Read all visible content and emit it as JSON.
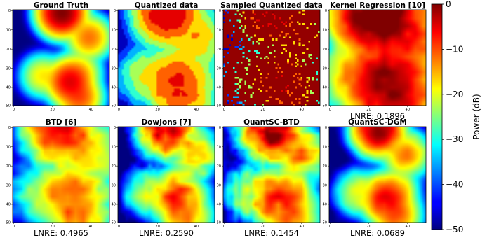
{
  "chart_data": {
    "type": "heatmap",
    "grid_size": 50,
    "axis_ticks": [
      "0",
      "20",
      "40"
    ],
    "axis_tick_values": [
      0,
      20,
      40
    ],
    "colormap": "jet",
    "colorbar": {
      "label": "Power (dB)",
      "range": [
        -50,
        0
      ],
      "ticks": [
        {
          "value": 0,
          "label": "0"
        },
        {
          "value": -10,
          "label": "−10"
        },
        {
          "value": -20,
          "label": "−20"
        },
        {
          "value": -30,
          "label": "−30"
        },
        {
          "value": -40,
          "label": "−40"
        },
        {
          "value": -50,
          "label": "−50"
        }
      ]
    },
    "panels": [
      {
        "title": "Ground Truth",
        "metric": "",
        "method": "truth"
      },
      {
        "title": "Quantized data",
        "metric": "",
        "method": "quantized"
      },
      {
        "title": "Sampled Quantized data",
        "metric": "",
        "method": "sampled"
      },
      {
        "title": "Kernel Regression [10]",
        "metric": "LNRE: 0.1896",
        "method": "kernel"
      },
      {
        "title": "BTD [6]",
        "metric": "LNRE: 0.4965",
        "method": "btd"
      },
      {
        "title": "DowJons [7]",
        "metric": "LNRE: 0.2590",
        "method": "dowjons"
      },
      {
        "title": "QuantSC-BTD",
        "metric": "LNRE: 0.1454",
        "method": "quantsc_btd"
      },
      {
        "title": "QuantSC-DGM",
        "metric": "LNRE: 0.0689",
        "method": "quantsc_dgm"
      }
    ],
    "emitters_approx": [
      {
        "col": 25,
        "row": 1,
        "peak_db": 0
      },
      {
        "col": 39,
        "row": 14,
        "peak_db": -12
      },
      {
        "col": 15,
        "row": 34,
        "peak_db": -18
      },
      {
        "col": 29,
        "row": 37,
        "peak_db": -5
      },
      {
        "col": 34,
        "row": 32,
        "peak_db": -16
      },
      {
        "col": 34,
        "row": 45,
        "peak_db": -10
      }
    ]
  }
}
